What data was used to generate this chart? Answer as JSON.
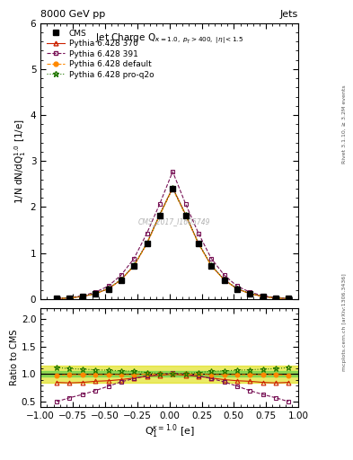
{
  "title_top_left": "8000 GeV pp",
  "title_top_right": "Jets",
  "plot_title": "Jet Charge Q(κ=1.0, p$_T$>400, |η|<1.5)",
  "watermark": "CMS_2017_I1605749",
  "side_text": "Rivet 3.1.10, ≥ 3.2M events",
  "side_text2": "mcplots.cern.ch [arXiv:1306.3436]",
  "xlim": [
    -1.0,
    1.0
  ],
  "main_ylim": [
    0,
    6
  ],
  "ratio_ylim": [
    0.4,
    2.2
  ],
  "x_data": [
    -0.875,
    -0.775,
    -0.675,
    -0.575,
    -0.475,
    -0.375,
    -0.275,
    -0.175,
    -0.075,
    0.025,
    0.125,
    0.225,
    0.325,
    0.425,
    0.525,
    0.625,
    0.725,
    0.825,
    0.925
  ],
  "cms_data": [
    0.01,
    0.022,
    0.055,
    0.115,
    0.22,
    0.415,
    0.72,
    1.2,
    1.82,
    2.4,
    1.82,
    1.2,
    0.72,
    0.415,
    0.22,
    0.115,
    0.055,
    0.022,
    0.01
  ],
  "p370_data": [
    0.01,
    0.022,
    0.055,
    0.115,
    0.222,
    0.418,
    0.726,
    1.21,
    1.84,
    2.42,
    1.84,
    1.21,
    0.726,
    0.418,
    0.222,
    0.115,
    0.055,
    0.022,
    0.01
  ],
  "p391_data": [
    0.014,
    0.03,
    0.072,
    0.148,
    0.28,
    0.52,
    0.88,
    1.43,
    2.07,
    2.77,
    2.07,
    1.43,
    0.88,
    0.52,
    0.28,
    0.148,
    0.072,
    0.03,
    0.014
  ],
  "pdef_data": [
    0.01,
    0.022,
    0.055,
    0.115,
    0.22,
    0.415,
    0.72,
    1.2,
    1.82,
    2.4,
    1.82,
    1.2,
    0.72,
    0.415,
    0.22,
    0.115,
    0.055,
    0.022,
    0.01
  ],
  "pq2o_data": [
    0.011,
    0.024,
    0.058,
    0.12,
    0.228,
    0.425,
    0.735,
    1.215,
    1.835,
    2.41,
    1.835,
    1.215,
    0.735,
    0.425,
    0.228,
    0.12,
    0.058,
    0.024,
    0.011
  ],
  "ratio_p370": [
    0.85,
    0.84,
    0.85,
    0.87,
    0.88,
    0.9,
    0.93,
    0.96,
    0.98,
    1.0,
    0.98,
    0.96,
    0.93,
    0.9,
    0.88,
    0.87,
    0.85,
    0.84,
    0.85
  ],
  "ratio_p391": [
    0.5,
    0.57,
    0.63,
    0.7,
    0.78,
    0.86,
    0.92,
    0.97,
    1.0,
    1.02,
    1.0,
    0.97,
    0.92,
    0.86,
    0.78,
    0.7,
    0.63,
    0.57,
    0.5
  ],
  "ratio_pdef": [
    0.98,
    0.99,
    0.99,
    0.99,
    0.99,
    0.99,
    0.99,
    1.0,
    1.0,
    1.0,
    1.0,
    1.0,
    0.99,
    0.99,
    0.99,
    0.99,
    0.99,
    0.99,
    0.98
  ],
  "ratio_pq2o": [
    1.12,
    1.1,
    1.09,
    1.08,
    1.07,
    1.06,
    1.05,
    1.03,
    1.01,
    1.0,
    1.01,
    1.03,
    1.05,
    1.06,
    1.07,
    1.08,
    1.09,
    1.1,
    1.12
  ],
  "cms_color": "#000000",
  "p370_color": "#cc2200",
  "p391_color": "#771155",
  "pdef_color": "#ff8800",
  "pq2o_color": "#227700",
  "band_green": "#44cc44",
  "band_yellow": "#dddd00",
  "band_green_alpha": 0.5,
  "band_yellow_alpha": 0.6,
  "ratio_band_inner": 0.05,
  "ratio_band_outer": 0.15,
  "main_yticks": [
    0,
    1,
    2,
    3,
    4,
    5,
    6
  ],
  "ratio_yticks": [
    0.5,
    1.0,
    1.5,
    2.0
  ]
}
